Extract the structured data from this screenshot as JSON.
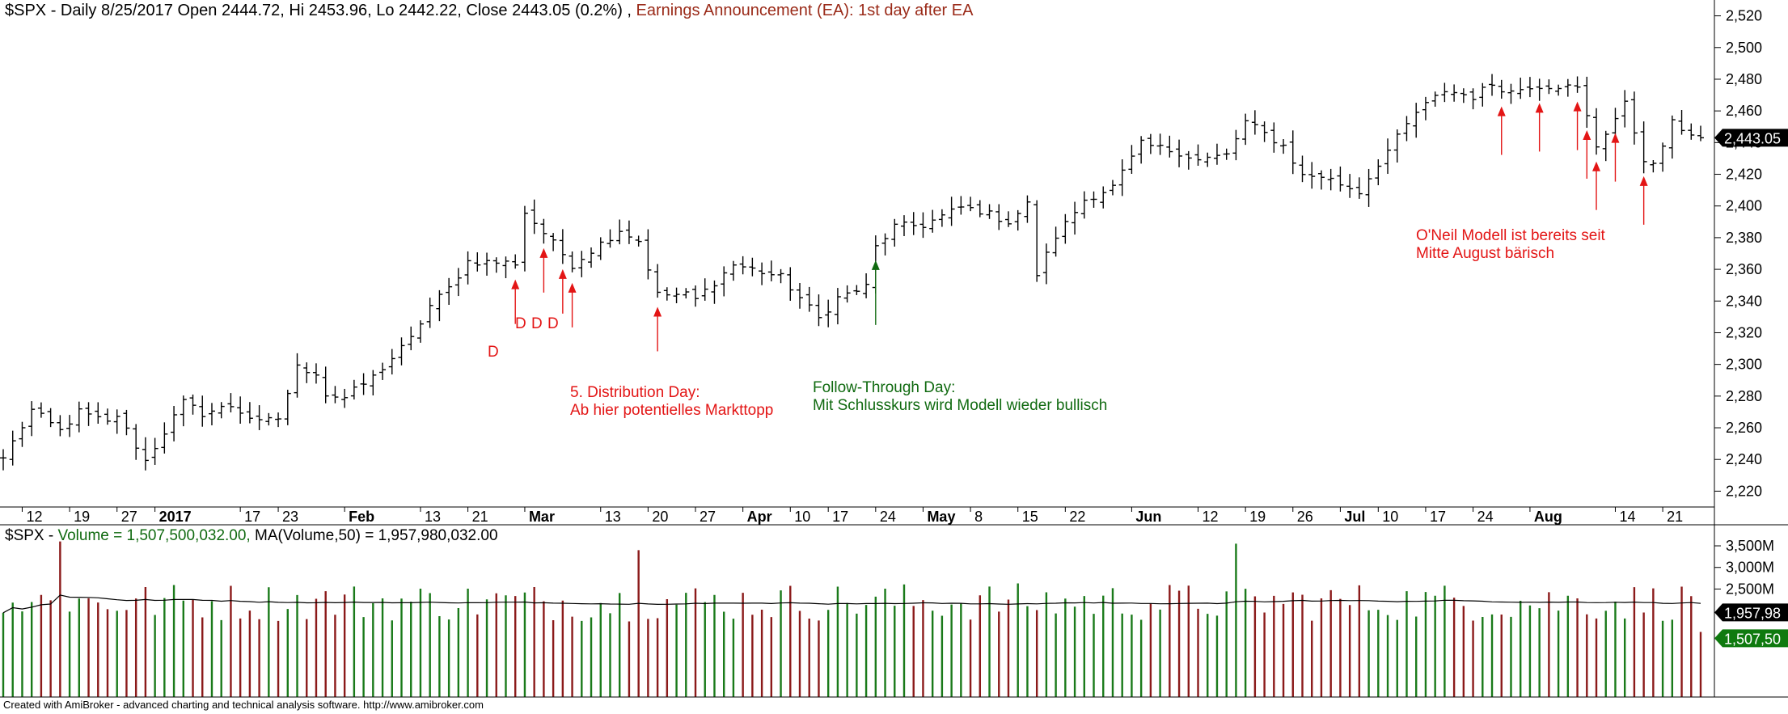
{
  "price_header": {
    "symbol": "$SPX",
    "ohlc_text": " - Daily 8/25/2017 Open 2444.72, Hi 2453.96, Lo 2442.22, Close 2443.05 (0.2%) ,",
    "earnings_text": " Earnings Announcement (EA): 1st day after EA"
  },
  "volume_header": {
    "symbol": "$SPX",
    "sep": " - ",
    "volume_text": "Volume = 1,507,500,032.00,",
    "ma_text": "  MA(Volume,50) = 1,957,980,032.00"
  },
  "annotations": {
    "d_single": "D",
    "d_triple": [
      "D",
      "D",
      "D"
    ],
    "distribution_line1": "5. Distribution Day:",
    "distribution_line2": "Ab hier potentielles Markttopp",
    "ftd_line1": "Follow-Through Day:",
    "ftd_line2": "Mit Schlusskurs wird Modell wieder bullisch",
    "oneil_line1": "O'Neil Modell ist bereits seit",
    "oneil_line2": "Mitte August bärisch"
  },
  "footer": "Created with AmiBroker - advanced charting and technical analysis software. http://www.amibroker.com",
  "colors": {
    "up_volume": "#1a7a1a",
    "down_volume": "#8b1a1a",
    "price_bar": "#000000",
    "arrow_red": "#e31515",
    "arrow_green": "#106a10",
    "axis_badge_price": "#000000",
    "axis_badge_volume": "#0f7a0f",
    "ma_line": "#000000"
  },
  "chart_data": [
    {
      "type": "ohlc",
      "title": "$SPX - Daily",
      "y_tick_labels": [
        "2,220",
        "2,240",
        "2,260",
        "2,280",
        "2,300",
        "2,320",
        "2,340",
        "2,360",
        "2,380",
        "2,400",
        "2,420",
        "2,440",
        "2,460",
        "2,480",
        "2,500",
        "2,520"
      ],
      "ylim": [
        2210,
        2530
      ],
      "x_tick_labels": [
        {
          "label": "12",
          "bold": false,
          "date": "2016-12-12"
        },
        {
          "label": "19",
          "bold": false,
          "date": "2016-12-19"
        },
        {
          "label": "27",
          "bold": false,
          "date": "2016-12-27"
        },
        {
          "label": "2017",
          "bold": true,
          "date": "2017-01-03"
        },
        {
          "label": "17",
          "bold": false,
          "date": "2017-01-17"
        },
        {
          "label": "23",
          "bold": false,
          "date": "2017-01-23"
        },
        {
          "label": "Feb",
          "bold": true,
          "date": "2017-02-01"
        },
        {
          "label": "13",
          "bold": false,
          "date": "2017-02-13"
        },
        {
          "label": "21",
          "bold": false,
          "date": "2017-02-21"
        },
        {
          "label": "Mar",
          "bold": true,
          "date": "2017-03-01"
        },
        {
          "label": "13",
          "bold": false,
          "date": "2017-03-13"
        },
        {
          "label": "20",
          "bold": false,
          "date": "2017-03-20"
        },
        {
          "label": "27",
          "bold": false,
          "date": "2017-03-27"
        },
        {
          "label": "Apr",
          "bold": true,
          "date": "2017-04-03"
        },
        {
          "label": "10",
          "bold": false,
          "date": "2017-04-10"
        },
        {
          "label": "17",
          "bold": false,
          "date": "2017-04-17"
        },
        {
          "label": "24",
          "bold": false,
          "date": "2017-04-24"
        },
        {
          "label": "May",
          "bold": true,
          "date": "2017-05-01"
        },
        {
          "label": "8",
          "bold": false,
          "date": "2017-05-08"
        },
        {
          "label": "15",
          "bold": false,
          "date": "2017-05-15"
        },
        {
          "label": "22",
          "bold": false,
          "date": "2017-05-22"
        },
        {
          "label": "Jun",
          "bold": true,
          "date": "2017-06-01"
        },
        {
          "label": "12",
          "bold": false,
          "date": "2017-06-12"
        },
        {
          "label": "19",
          "bold": false,
          "date": "2017-06-19"
        },
        {
          "label": "26",
          "bold": false,
          "date": "2017-06-26"
        },
        {
          "label": "Jul",
          "bold": true,
          "date": "2017-07-03"
        },
        {
          "label": "10",
          "bold": false,
          "date": "2017-07-10"
        },
        {
          "label": "17",
          "bold": false,
          "date": "2017-07-17"
        },
        {
          "label": "24",
          "bold": false,
          "date": "2017-07-24"
        },
        {
          "label": "Aug",
          "bold": true,
          "date": "2017-08-01"
        },
        {
          "label": "14",
          "bold": false,
          "date": "2017-08-14"
        },
        {
          "label": "21",
          "bold": false,
          "date": "2017-08-21"
        }
      ],
      "last_close_label": "2,443.05",
      "keypoints": [
        {
          "date": "2016-12-08",
          "close": 2241
        },
        {
          "date": "2016-12-13",
          "close": 2271
        },
        {
          "date": "2016-12-16",
          "close": 2258
        },
        {
          "date": "2016-12-20",
          "close": 2270
        },
        {
          "date": "2016-12-23",
          "close": 2263
        },
        {
          "date": "2016-12-27",
          "close": 2268
        },
        {
          "date": "2016-12-30",
          "close": 2239
        },
        {
          "date": "2017-01-06",
          "close": 2276
        },
        {
          "date": "2017-01-10",
          "close": 2269
        },
        {
          "date": "2017-01-13",
          "close": 2274
        },
        {
          "date": "2017-01-19",
          "close": 2263
        },
        {
          "date": "2017-01-23",
          "close": 2266
        },
        {
          "date": "2017-01-25",
          "close": 2298
        },
        {
          "date": "2017-01-27",
          "close": 2295
        },
        {
          "date": "2017-01-30",
          "close": 2281
        },
        {
          "date": "2017-02-01",
          "close": 2279
        },
        {
          "date": "2017-02-06",
          "close": 2292
        },
        {
          "date": "2017-02-10",
          "close": 2316
        },
        {
          "date": "2017-02-14",
          "close": 2337
        },
        {
          "date": "2017-02-16",
          "close": 2348
        },
        {
          "date": "2017-02-21",
          "close": 2365
        },
        {
          "date": "2017-02-28",
          "close": 2364
        },
        {
          "date": "2017-03-01",
          "close": 2396
        },
        {
          "date": "2017-03-03",
          "close": 2383
        },
        {
          "date": "2017-03-08",
          "close": 2363
        },
        {
          "date": "2017-03-10",
          "close": 2372
        },
        {
          "date": "2017-03-15",
          "close": 2385
        },
        {
          "date": "2017-03-17",
          "close": 2378
        },
        {
          "date": "2017-03-21",
          "close": 2344
        },
        {
          "date": "2017-03-24",
          "close": 2344
        },
        {
          "date": "2017-03-27",
          "close": 2341
        },
        {
          "date": "2017-03-31",
          "close": 2363
        },
        {
          "date": "2017-04-04",
          "close": 2360
        },
        {
          "date": "2017-04-07",
          "close": 2355
        },
        {
          "date": "2017-04-13",
          "close": 2329
        },
        {
          "date": "2017-04-18",
          "close": 2342
        },
        {
          "date": "2017-04-21",
          "close": 2349
        },
        {
          "date": "2017-04-24",
          "close": 2374
        },
        {
          "date": "2017-04-26",
          "close": 2387
        },
        {
          "date": "2017-05-01",
          "close": 2388
        },
        {
          "date": "2017-05-05",
          "close": 2399
        },
        {
          "date": "2017-05-09",
          "close": 2397
        },
        {
          "date": "2017-05-12",
          "close": 2390
        },
        {
          "date": "2017-05-16",
          "close": 2401
        },
        {
          "date": "2017-05-17",
          "close": 2357
        },
        {
          "date": "2017-05-19",
          "close": 2381
        },
        {
          "date": "2017-05-24",
          "close": 2404
        },
        {
          "date": "2017-05-30",
          "close": 2412
        },
        {
          "date": "2017-06-02",
          "close": 2439
        },
        {
          "date": "2017-06-08",
          "close": 2434
        },
        {
          "date": "2017-06-12",
          "close": 2429
        },
        {
          "date": "2017-06-15",
          "close": 2432
        },
        {
          "date": "2017-06-19",
          "close": 2453
        },
        {
          "date": "2017-06-23",
          "close": 2438
        },
        {
          "date": "2017-06-27",
          "close": 2419
        },
        {
          "date": "2017-06-29",
          "close": 2419
        },
        {
          "date": "2017-07-06",
          "close": 2409
        },
        {
          "date": "2017-07-10",
          "close": 2427
        },
        {
          "date": "2017-07-14",
          "close": 2459
        },
        {
          "date": "2017-07-19",
          "close": 2473
        },
        {
          "date": "2017-07-24",
          "close": 2469
        },
        {
          "date": "2017-07-26",
          "close": 2477
        },
        {
          "date": "2017-07-28",
          "close": 2472
        },
        {
          "date": "2017-08-01",
          "close": 2476
        },
        {
          "date": "2017-08-04",
          "close": 2476
        },
        {
          "date": "2017-08-08",
          "close": 2474
        },
        {
          "date": "2017-08-10",
          "close": 2438
        },
        {
          "date": "2017-08-15",
          "close": 2464
        },
        {
          "date": "2017-08-17",
          "close": 2430
        },
        {
          "date": "2017-08-18",
          "close": 2425
        },
        {
          "date": "2017-08-22",
          "close": 2452
        },
        {
          "date": "2017-08-25",
          "close": 2443.05
        }
      ],
      "annotations": [
        {
          "date": "2017-02-28",
          "type": "distribution_day",
          "label": "D"
        },
        {
          "date": "2017-03-03",
          "type": "distribution_day",
          "label": "D"
        },
        {
          "date": "2017-03-07",
          "type": "distribution_day",
          "label": "D"
        },
        {
          "date": "2017-03-08",
          "type": "distribution_day",
          "label": "D"
        },
        {
          "date": "2017-03-21",
          "type": "distribution_day",
          "label": "5. Distribution Day"
        },
        {
          "date": "2017-04-24",
          "type": "follow_through_day",
          "label": "Follow-Through Day"
        },
        {
          "date": "2017-07-27",
          "type": "distribution_day"
        },
        {
          "date": "2017-08-02",
          "type": "distribution_day"
        },
        {
          "date": "2017-08-08",
          "type": "distribution_day"
        },
        {
          "date": "2017-08-09",
          "type": "distribution_day"
        },
        {
          "date": "2017-08-10",
          "type": "distribution_day"
        },
        {
          "date": "2017-08-14",
          "type": "distribution_day"
        },
        {
          "date": "2017-08-17",
          "type": "distribution_day"
        }
      ]
    },
    {
      "type": "bar",
      "title": "$SPX - Volume",
      "y_tick_labels": [
        "2,500M",
        "3,000M",
        "3,500M"
      ],
      "ylim": [
        0,
        3800000000
      ],
      "series": [
        {
          "name": "Volume",
          "last_value": 1507500032,
          "label": "1,507,50"
        },
        {
          "name": "MA(Volume,50)",
          "last_value": 1957980032,
          "label": "1,957,98"
        }
      ],
      "notable_spikes": [
        {
          "date": "2016-12-16",
          "volume": 3600000000
        },
        {
          "date": "2017-03-17",
          "volume": 3400000000
        },
        {
          "date": "2017-06-16",
          "volume": 3550000000
        }
      ]
    }
  ]
}
